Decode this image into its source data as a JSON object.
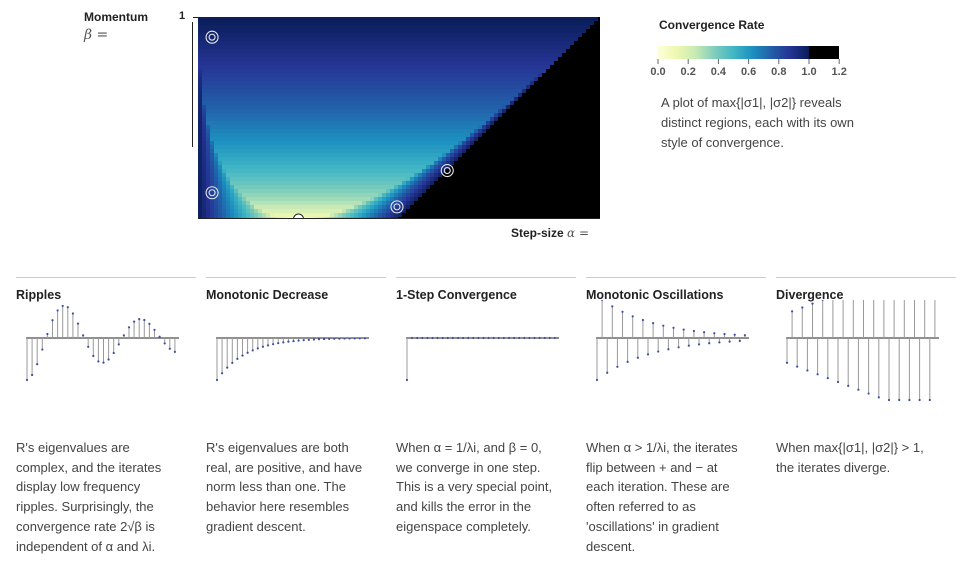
{
  "y_axis": {
    "label": "Momentum",
    "symbol": "β =",
    "tick": "1"
  },
  "x_axis": {
    "label": "Step-size",
    "symbol": "α ="
  },
  "legend": {
    "title": "Convergence Rate",
    "ticks": [
      "0.0",
      "0.2",
      "0.4",
      "0.6",
      "0.8",
      "1.0",
      "1.2"
    ],
    "description": "A plot of max{|σ1|, |σ2|} reveals distinct regions, each with its own style of convergence."
  },
  "colors": {
    "colormap": [
      "#ffffd9",
      "#edf8b1",
      "#c7e9b4",
      "#7fcdbb",
      "#41b6c4",
      "#1d91c0",
      "#225ea8",
      "#253494",
      "#081d58"
    ],
    "divergent": "#000000",
    "stem": "#999999",
    "dot": "#3b4fa0"
  },
  "columns": [
    {
      "title": "Ripples",
      "description": "R's eigenvalues are complex, and the iterates display low frequency ripples. Surprisingly, the convergence rate 2√β is independent of α and λi."
    },
    {
      "title": "Monotonic Decrease",
      "description": "R's eigenvalues are both real, are positive, and have norm less than one. The behavior here resembles gradient descent."
    },
    {
      "title": "1-Step Convergence",
      "description": "When α = 1/λi, and β = 0, we converge in one step. This is a very special point, and kills the error in the eigenspace completely."
    },
    {
      "title": "Monotonic Oscillations",
      "description": "When α > 1/λi, the iterates flip between + and − at each iteration. These are often referred to as 'oscillations' in gradient descent."
    },
    {
      "title": "Divergence",
      "description": "When max{|σ1|, |σ2|} > 1, the iterates diverge."
    }
  ]
}
